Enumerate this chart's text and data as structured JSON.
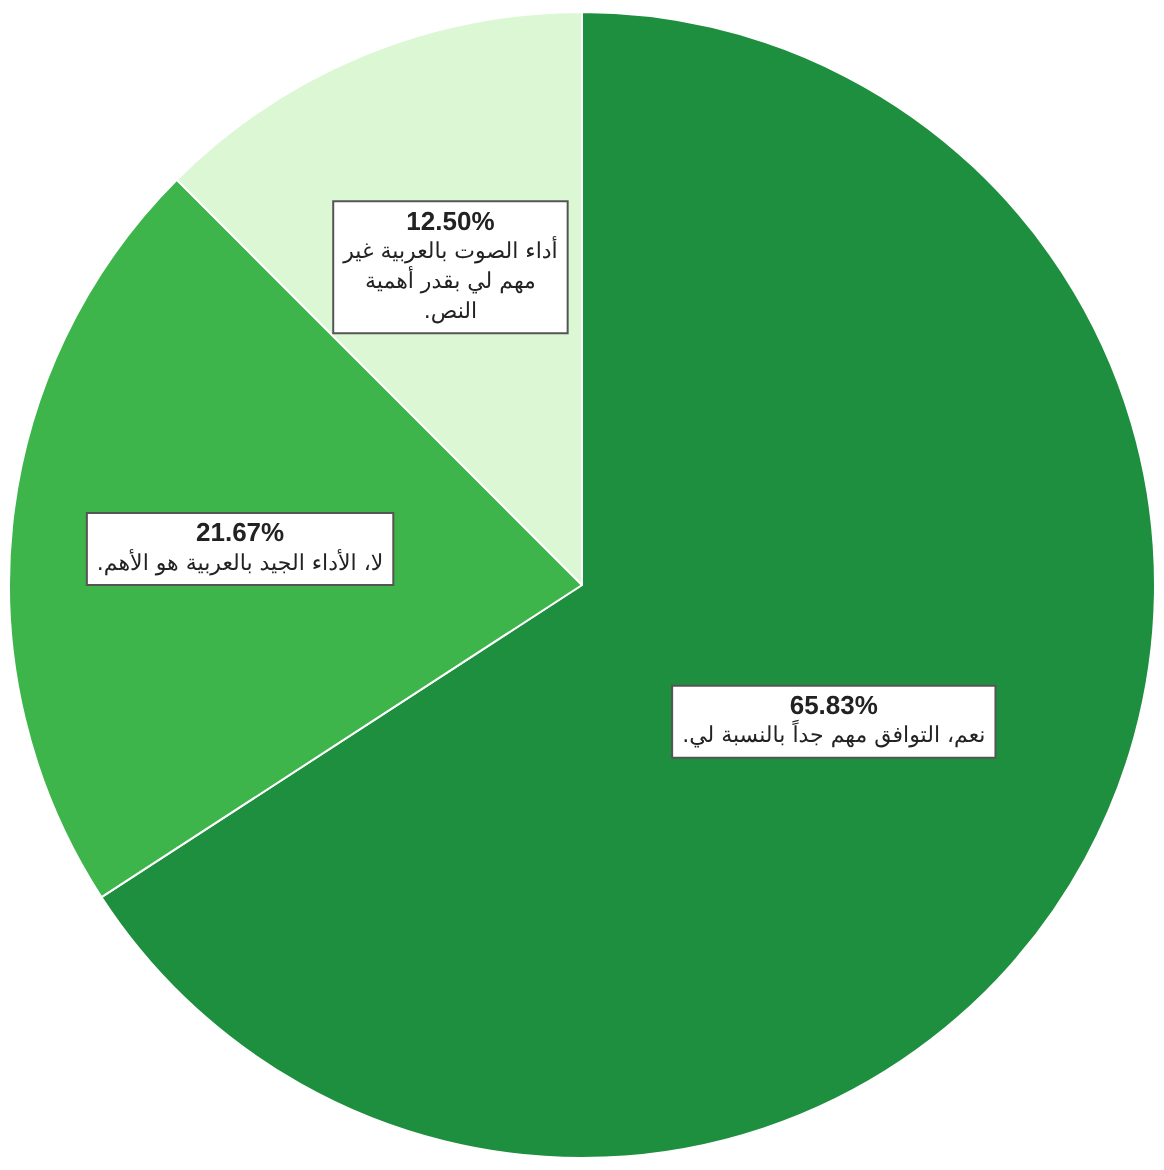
{
  "chart_data": {
    "type": "pie",
    "categories": [
      "نعم، التوافق مهم جداً بالنسبة لي.",
      "لا، الأداء الجيد بالعربية هو الأهم.",
      "أداء الصوت بالعربية غير مهم لي بقدر أهمية النص."
    ],
    "values": [
      65.83,
      21.67,
      12.5
    ],
    "value_labels": [
      "65.83%",
      "21.67%",
      "12.50%"
    ],
    "colors": [
      "#1e8f3e",
      "#3db54a",
      "#dcf7d4"
    ],
    "legend": false
  }
}
